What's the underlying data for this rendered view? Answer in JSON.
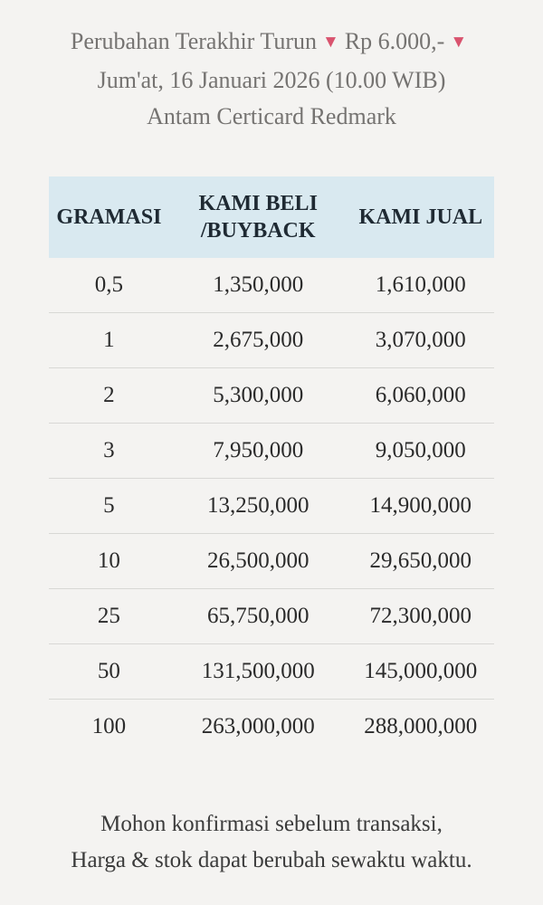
{
  "colors": {
    "page_bg": "#f4f3f1",
    "table_header_bg": "#d9e9f0",
    "accent_down_red": "#d9536e",
    "divider": "#d8d8d5"
  },
  "header": {
    "change_label": "Perubahan Terakhir Turun",
    "change_amount": "Rp 6.000,-",
    "down_arrow": "▼",
    "date_line": "Jum'at, 16 Januari 2026 (10.00 WIB)",
    "product_line": "Antam Certicard Redmark"
  },
  "table": {
    "col_gramasi": "GRAMASI",
    "col_beli_line1": "KAMI BELI",
    "col_beli_line2": "/BUYBACK",
    "col_jual": "KAMI JUAL",
    "rows": [
      {
        "gramasi": "0,5",
        "beli": "1,350,000",
        "jual": "1,610,000"
      },
      {
        "gramasi": "1",
        "beli": "2,675,000",
        "jual": "3,070,000"
      },
      {
        "gramasi": "2",
        "beli": "5,300,000",
        "jual": "6,060,000"
      },
      {
        "gramasi": "3",
        "beli": "7,950,000",
        "jual": "9,050,000"
      },
      {
        "gramasi": "5",
        "beli": "13,250,000",
        "jual": "14,900,000"
      },
      {
        "gramasi": "10",
        "beli": "26,500,000",
        "jual": "29,650,000"
      },
      {
        "gramasi": "25",
        "beli": "65,750,000",
        "jual": "72,300,000"
      },
      {
        "gramasi": "50",
        "beli": "131,500,000",
        "jual": "145,000,000"
      },
      {
        "gramasi": "100",
        "beli": "263,000,000",
        "jual": "288,000,000"
      }
    ]
  },
  "footer": {
    "line1": "Mohon konfirmasi sebelum transaksi,",
    "line2": "Harga & stok dapat berubah sewaktu waktu."
  }
}
